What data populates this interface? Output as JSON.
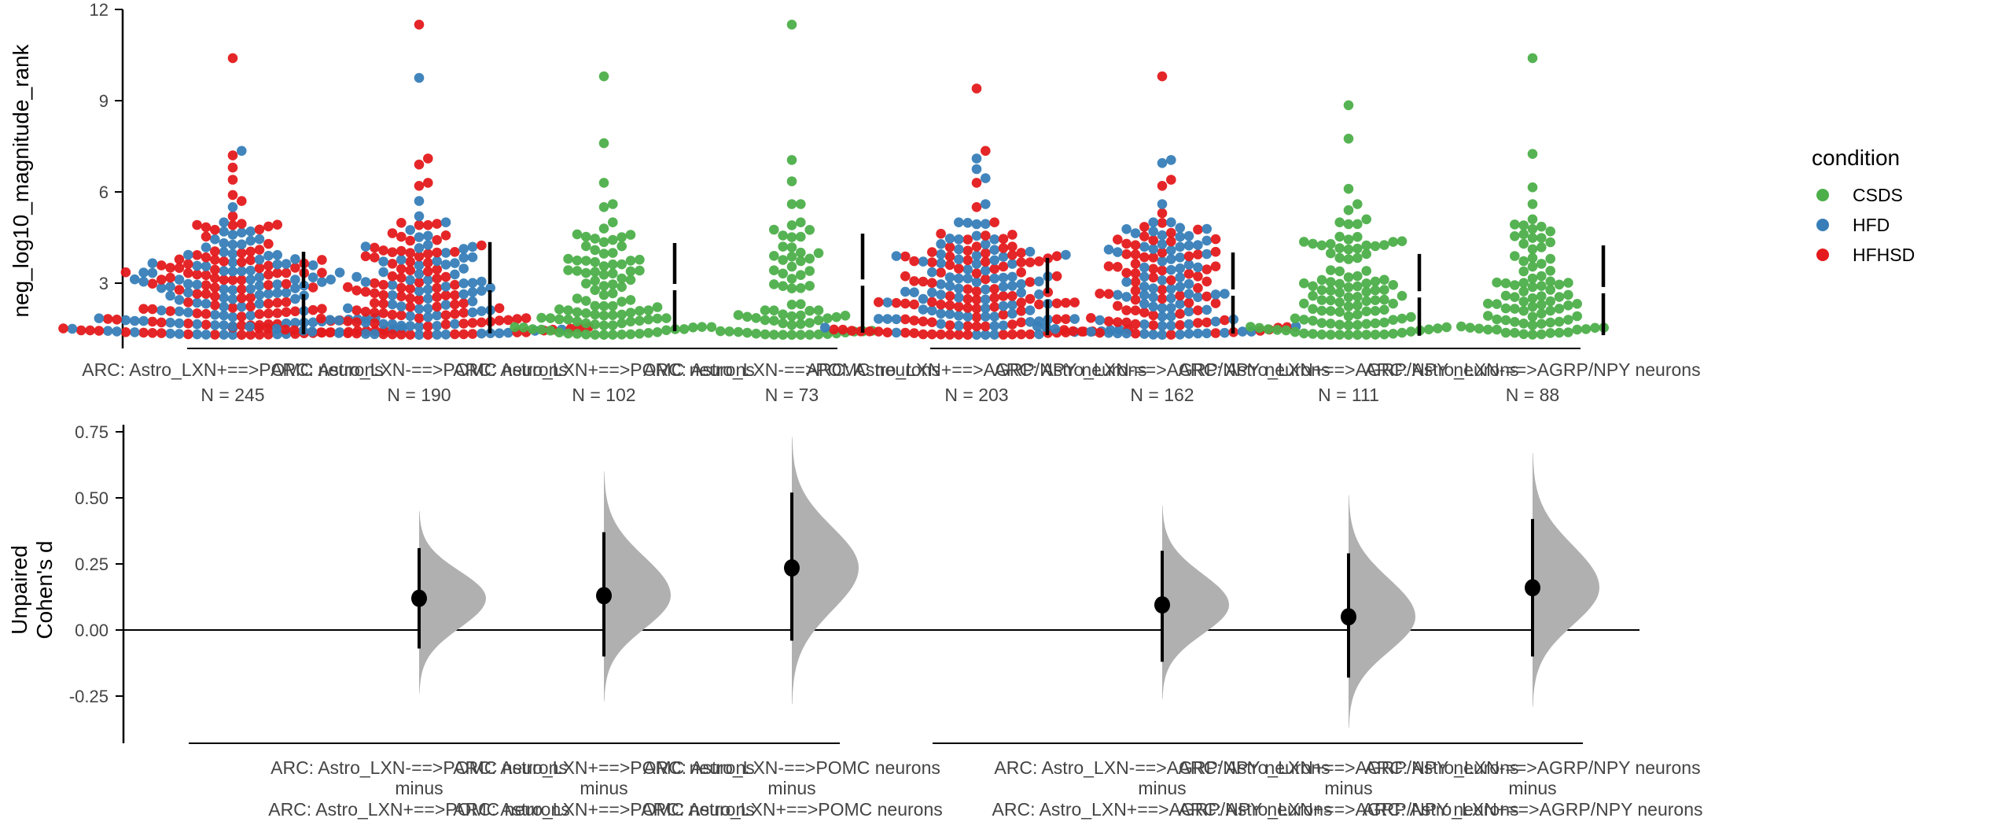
{
  "chart_data": [
    {
      "type": "scatter",
      "subtype": "swarm",
      "ylabel": "neg_log10_magnitude_rank",
      "xlabel": "",
      "ylim": [
        0.9,
        12
      ],
      "yticks": [
        3,
        6,
        9,
        12
      ],
      "grid": false,
      "legend": {
        "title": "condition",
        "placement": "right",
        "entries": [
          {
            "name": "CSDS",
            "color": "#4DAF4A"
          },
          {
            "name": "HFD",
            "color": "#377EB8"
          },
          {
            "name": "HFHSD",
            "color": "#E41A1C"
          }
        ]
      },
      "groups": [
        {
          "label": "ARC: Astro_LXN+==>POMC neurons",
          "n_label": "N = 245",
          "n": 245,
          "colors": [
            "HFD",
            "HFHSD"
          ],
          "mean": 2.74,
          "sd_low": 1.32,
          "sd_high": 4.03,
          "max_values": [
            10.4,
            7.35,
            7.2,
            6.8,
            6.4,
            5.9,
            5.7,
            5.5,
            5.2
          ]
        },
        {
          "label": "ARC: Astro_LXN-==>POMC neurons",
          "n_label": "N = 190",
          "n": 190,
          "colors": [
            "HFD",
            "HFHSD"
          ],
          "mean": 2.87,
          "sd_low": 1.35,
          "sd_high": 4.35,
          "max_values": [
            11.5,
            9.75,
            7.1,
            6.9,
            6.3,
            6.2,
            5.7,
            5.2
          ]
        },
        {
          "label": "ARC: Astro_LXN+==>POMC neurons",
          "n_label": "N = 102",
          "n": 102,
          "colors": [
            "CSDS"
          ],
          "mean": 2.87,
          "sd_low": 1.42,
          "sd_high": 4.32,
          "max_values": [
            9.8,
            7.6,
            6.3,
            5.6,
            5.5
          ]
        },
        {
          "label": "ARC: Astro_LXN-==>POMC neurons",
          "n_label": "N = 73",
          "n": 73,
          "colors": [
            "CSDS"
          ],
          "mean": 3.02,
          "sd_low": 1.37,
          "sd_high": 4.63,
          "max_values": [
            11.5,
            7.05,
            6.35,
            5.6,
            5.6
          ]
        },
        {
          "label": "ARC: Astro_LXN+==>AGRP/NPY neurons",
          "n_label": "N = 203",
          "n": 203,
          "colors": [
            "HFD",
            "HFHSD"
          ],
          "mean": 2.56,
          "sd_low": 1.29,
          "sd_high": 3.83,
          "max_values": [
            9.4,
            7.35,
            7.1,
            6.75,
            6.45,
            6.3,
            5.6,
            5.5
          ]
        },
        {
          "label": "ARC: Astro_LXN-==>AGRP/NPY neurons",
          "n_label": "N = 162",
          "n": 162,
          "colors": [
            "HFD",
            "HFHSD"
          ],
          "mean": 2.69,
          "sd_low": 1.34,
          "sd_high": 4.01,
          "max_values": [
            9.8,
            7.05,
            6.95,
            6.4,
            6.2,
            5.6,
            5.3
          ]
        },
        {
          "label": "ARC: Astro_LXN+==>AGRP/NPY neurons",
          "n_label": "N = 111",
          "n": 111,
          "colors": [
            "CSDS"
          ],
          "mean": 2.63,
          "sd_low": 1.27,
          "sd_high": 3.96,
          "max_values": [
            8.85,
            7.75,
            6.1,
            5.6,
            5.4,
            5.1
          ]
        },
        {
          "label": "ARC: Astro_LXN-==>AGRP/NPY neurons",
          "n_label": "N = 88",
          "n": 88,
          "colors": [
            "CSDS"
          ],
          "mean": 2.77,
          "sd_low": 1.29,
          "sd_high": 4.24,
          "max_values": [
            10.4,
            7.25,
            6.15,
            5.6,
            5.1,
            4.9
          ]
        }
      ]
    },
    {
      "type": "scatter",
      "subtype": "effect-size-halfviolin",
      "ylabel": "Unpaired\nCohen's d",
      "ylabel_lines": [
        "Unpaired",
        "Cohen's d"
      ],
      "ylim": [
        -0.42,
        0.78
      ],
      "yticks": [
        -0.25,
        0.0,
        0.25,
        0.5,
        0.75
      ],
      "ytick_labels": [
        "-0.25",
        "0.00",
        "0.25",
        "0.50",
        "0.75"
      ],
      "reference_line": 0.0,
      "grid": false,
      "comparisons": [
        {
          "line1": "ARC: Astro_LXN-==>POMC neurons",
          "line2": "minus",
          "line3": "ARC: Astro_LXN+==>POMC neurons",
          "group_index": 1,
          "d": 0.12,
          "ci": [
            -0.07,
            0.31
          ],
          "dist_range": [
            -0.24,
            0.45
          ]
        },
        {
          "line1": "ARC: Astro_LXN+==>POMC neurons",
          "line2": "minus",
          "line3": "ARC: Astro_LXN+==>POMC neurons",
          "group_index": 2,
          "d": 0.13,
          "ci": [
            -0.1,
            0.37
          ],
          "dist_range": [
            -0.27,
            0.6
          ]
        },
        {
          "line1": "ARC: Astro_LXN-==>POMC neurons",
          "line2": "minus",
          "line3": "ARC: Astro_LXN+==>POMC neurons",
          "group_index": 3,
          "d": 0.235,
          "ci": [
            -0.04,
            0.52
          ],
          "dist_range": [
            -0.28,
            0.73
          ]
        },
        {
          "line1": "ARC: Astro_LXN-==>AGRP/NPY neurons",
          "line2": "minus",
          "line3": "ARC: Astro_LXN+==>AGRP/NPY neurons",
          "group_index": 5,
          "d": 0.095,
          "ci": [
            -0.12,
            0.3
          ],
          "dist_range": [
            -0.26,
            0.47
          ]
        },
        {
          "line1": "ARC: Astro_LXN+==>AGRP/NPY neurons",
          "line2": "minus",
          "line3": "ARC: Astro_LXN+==>AGRP/NPY neurons",
          "group_index": 6,
          "d": 0.05,
          "ci": [
            -0.18,
            0.29
          ],
          "dist_range": [
            -0.37,
            0.51
          ]
        },
        {
          "line1": "ARC: Astro_LXN-==>AGRP/NPY neurons",
          "line2": "minus",
          "line3": "ARC: Astro_LXN+==>AGRP/NPY neurons",
          "group_index": 7,
          "d": 0.16,
          "ci": [
            -0.1,
            0.42
          ],
          "dist_range": [
            -0.29,
            0.67
          ]
        }
      ]
    }
  ],
  "colors": {
    "CSDS": "#4DAF4A",
    "HFD": "#377EB8",
    "HFHSD": "#E41A1C",
    "halfviolin": "#B0B0B0",
    "axis": "#000000",
    "tick_text": "#444444"
  }
}
